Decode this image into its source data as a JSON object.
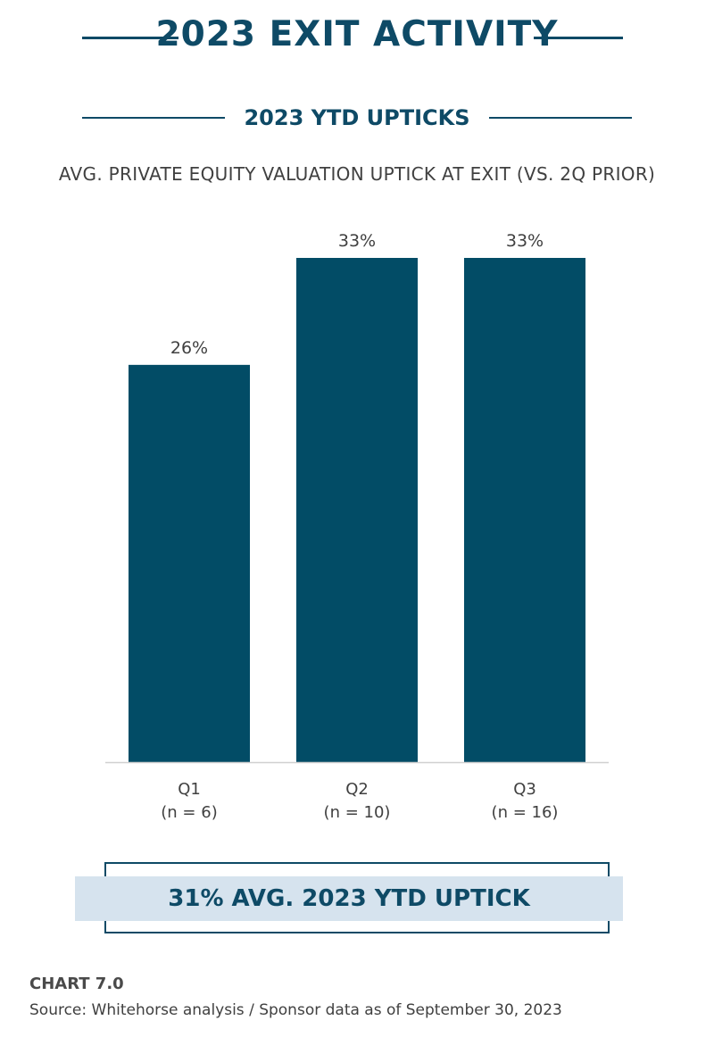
{
  "header": {
    "title": "2023 EXIT ACTIVITY",
    "subtitle": "2023 YTD UPTICKS"
  },
  "chart_data": {
    "type": "bar",
    "title": "AVG. PRIVATE EQUITY VALUATION UPTICK AT EXIT (VS. 2Q PRIOR)",
    "categories": [
      "Q1",
      "Q2",
      "Q3"
    ],
    "category_notes": [
      "(n = 6)",
      "(n = 10)",
      "(n = 16)"
    ],
    "values": [
      26,
      33,
      33
    ],
    "value_labels": [
      "26%",
      "33%",
      "33%"
    ],
    "unit": "%",
    "xlabel": "",
    "ylabel": "",
    "ylim": [
      0,
      33
    ],
    "grid": false,
    "legend": "none",
    "bar_color": "#024c66"
  },
  "callout": {
    "text": "31% AVG. 2023 YTD UPTICK"
  },
  "footer": {
    "chart_label": "CHART 7.0",
    "source": "Source: Whitehorse analysis / Sponsor data as of September 30, 2023"
  },
  "colors": {
    "accent": "#0e4a66",
    "bar": "#024c66",
    "band": "#d6e3ee"
  }
}
